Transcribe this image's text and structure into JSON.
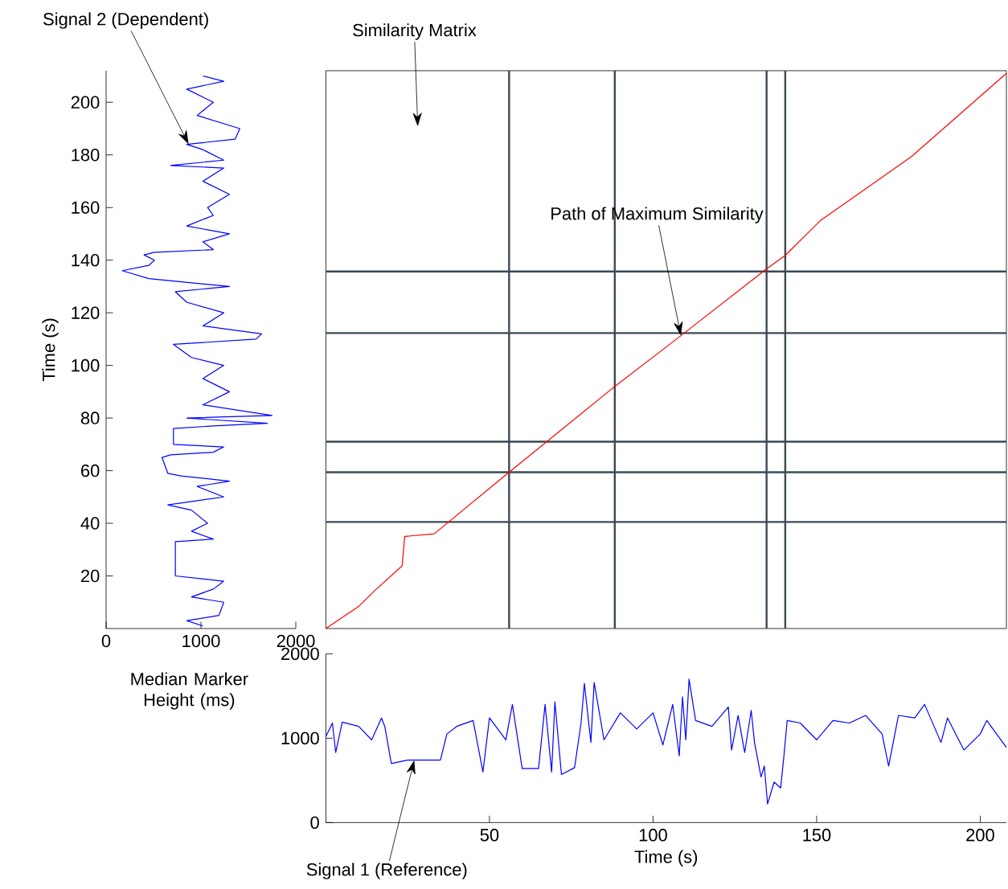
{
  "chart_data": [
    {
      "type": "line",
      "ylabel": "Time (s)",
      "xlim": [
        0,
        2000
      ],
      "xticks": [
        0,
        1000,
        2000
      ],
      "ylim": [
        0,
        212
      ],
      "yticks": [
        20,
        40,
        60,
        80,
        100,
        120,
        140,
        160,
        180,
        200
      ],
      "annotations": [
        {
          "text": "Signal 2 (Dependent)",
          "x": 870,
          "y": 184
        }
      ],
      "series": [
        {
          "color": "#0000ff",
          "x": [
            1020,
            850,
            1190,
            1240,
            900,
            1130,
            1240,
            730,
            730,
            1130,
            900,
            1070,
            900,
            650,
            1240,
            960,
            1300,
            790,
            650,
            590,
            680,
            1130,
            1240,
            710,
            710,
            1130,
            1700,
            850,
            1750,
            1020,
            1300,
            1020,
            1240,
            900,
            710,
            1580,
            1640,
            1020,
            1240,
            850,
            730,
            1300,
            730,
            450,
            170,
            450,
            510,
            400,
            510,
            1130,
            1020,
            1300,
            850,
            1130,
            1070,
            1300,
            1020,
            1240,
            680,
            1240,
            1020,
            850,
            1360,
            1410,
            960,
            1130,
            850,
            1240,
            1020
          ],
          "values": [
            1,
            3,
            5,
            10,
            12,
            15,
            18,
            20,
            33,
            34,
            37,
            40,
            45,
            47,
            50,
            54,
            56,
            58,
            59,
            65,
            66,
            67,
            69,
            70,
            76,
            77,
            78,
            80,
            81,
            85,
            90,
            95,
            100,
            103,
            108,
            110,
            112,
            115,
            120,
            124,
            128,
            130,
            132,
            133,
            136,
            138,
            140,
            142,
            143,
            144,
            147,
            150,
            153,
            157,
            160,
            165,
            170,
            175,
            176,
            178,
            182,
            184,
            186,
            190,
            195,
            200,
            205,
            208,
            210
          ]
        }
      ]
    },
    {
      "type": "line",
      "xlim": [
        0,
        208
      ],
      "ylim": [
        0,
        212
      ],
      "annotations": [
        "Similarity Matrix",
        {
          "text": "Path of Maximum Similarity",
          "x": 108.5,
          "y": 111.3
        }
      ],
      "ref_lines": [
        {
          "axis": "x",
          "value": 56,
          "color": "#3a4a55"
        },
        {
          "axis": "x",
          "value": 88.3,
          "color": "#3a4a55"
        },
        {
          "axis": "x",
          "value": 134.7,
          "color": "#3a4a55"
        },
        {
          "axis": "x",
          "value": 140.4,
          "color": "#3a4a55"
        },
        {
          "axis": "y",
          "value": 135.7,
          "color": "#3a4a55"
        },
        {
          "axis": "y",
          "value": 112.3,
          "color": "#3a4a55"
        },
        {
          "axis": "y",
          "value": 71,
          "color": "#3a4a55"
        },
        {
          "axis": "y",
          "value": 59.4,
          "color": "#3a4a55"
        },
        {
          "axis": "y",
          "value": 40.5,
          "color": "#3a4a55"
        }
      ],
      "series": [
        {
          "color": "#ff0000",
          "x": [
            0,
            10.1,
            15.1,
            23.3,
            24.1,
            33.1,
            56,
            87.2,
            108.5,
            134.7,
            140.4,
            151.1,
            179,
            208
          ],
          "values": [
            0,
            8.5,
            14.6,
            23.8,
            35,
            36,
            59.4,
            90.9,
            111.3,
            136.7,
            141.8,
            155,
            179.4,
            211
          ]
        }
      ]
    },
    {
      "type": "line",
      "xlabel": "Time (s)",
      "ylabel": "Median Marker Height (ms)",
      "xlim": [
        0,
        208
      ],
      "xticks": [
        50,
        100,
        150,
        200
      ],
      "ylim": [
        0,
        2000
      ],
      "yticks": [
        0,
        1000,
        2000
      ],
      "annotations": [
        {
          "text": "Signal 1 (Reference)",
          "x": 27,
          "y": 740
        }
      ],
      "series": [
        {
          "color": "#0000ff",
          "x": [
            0,
            2,
            3,
            5,
            10,
            14,
            17,
            18,
            20,
            25,
            35,
            37,
            40,
            45,
            48,
            50,
            55,
            57,
            60,
            65,
            67,
            69,
            70,
            72,
            76,
            78,
            79,
            81,
            82,
            85,
            90,
            95,
            100,
            103,
            106,
            108,
            109,
            110,
            111,
            113,
            118,
            123,
            124,
            126,
            128,
            130,
            131,
            133,
            134,
            135,
            137,
            139,
            140,
            141,
            145,
            150,
            155,
            160,
            165,
            170,
            172,
            175,
            180,
            183,
            188,
            190,
            195,
            200,
            202,
            205,
            208
          ],
          "values": [
            1020,
            1180,
            830,
            1190,
            1140,
            980,
            1240,
            1140,
            700,
            740,
            740,
            1050,
            1140,
            1210,
            600,
            1240,
            980,
            1400,
            640,
            640,
            1400,
            600,
            1430,
            570,
            650,
            1180,
            1650,
            950,
            1660,
            980,
            1300,
            1110,
            1300,
            920,
            1400,
            790,
            1490,
            980,
            1700,
            1210,
            1140,
            1370,
            860,
            1270,
            830,
            1330,
            950,
            540,
            670,
            220,
            480,
            410,
            790,
            1210,
            1180,
            980,
            1210,
            1180,
            1270,
            1050,
            670,
            1270,
            1240,
            1400,
            950,
            1240,
            860,
            1050,
            1210,
            1050,
            890
          ]
        }
      ]
    }
  ]
}
